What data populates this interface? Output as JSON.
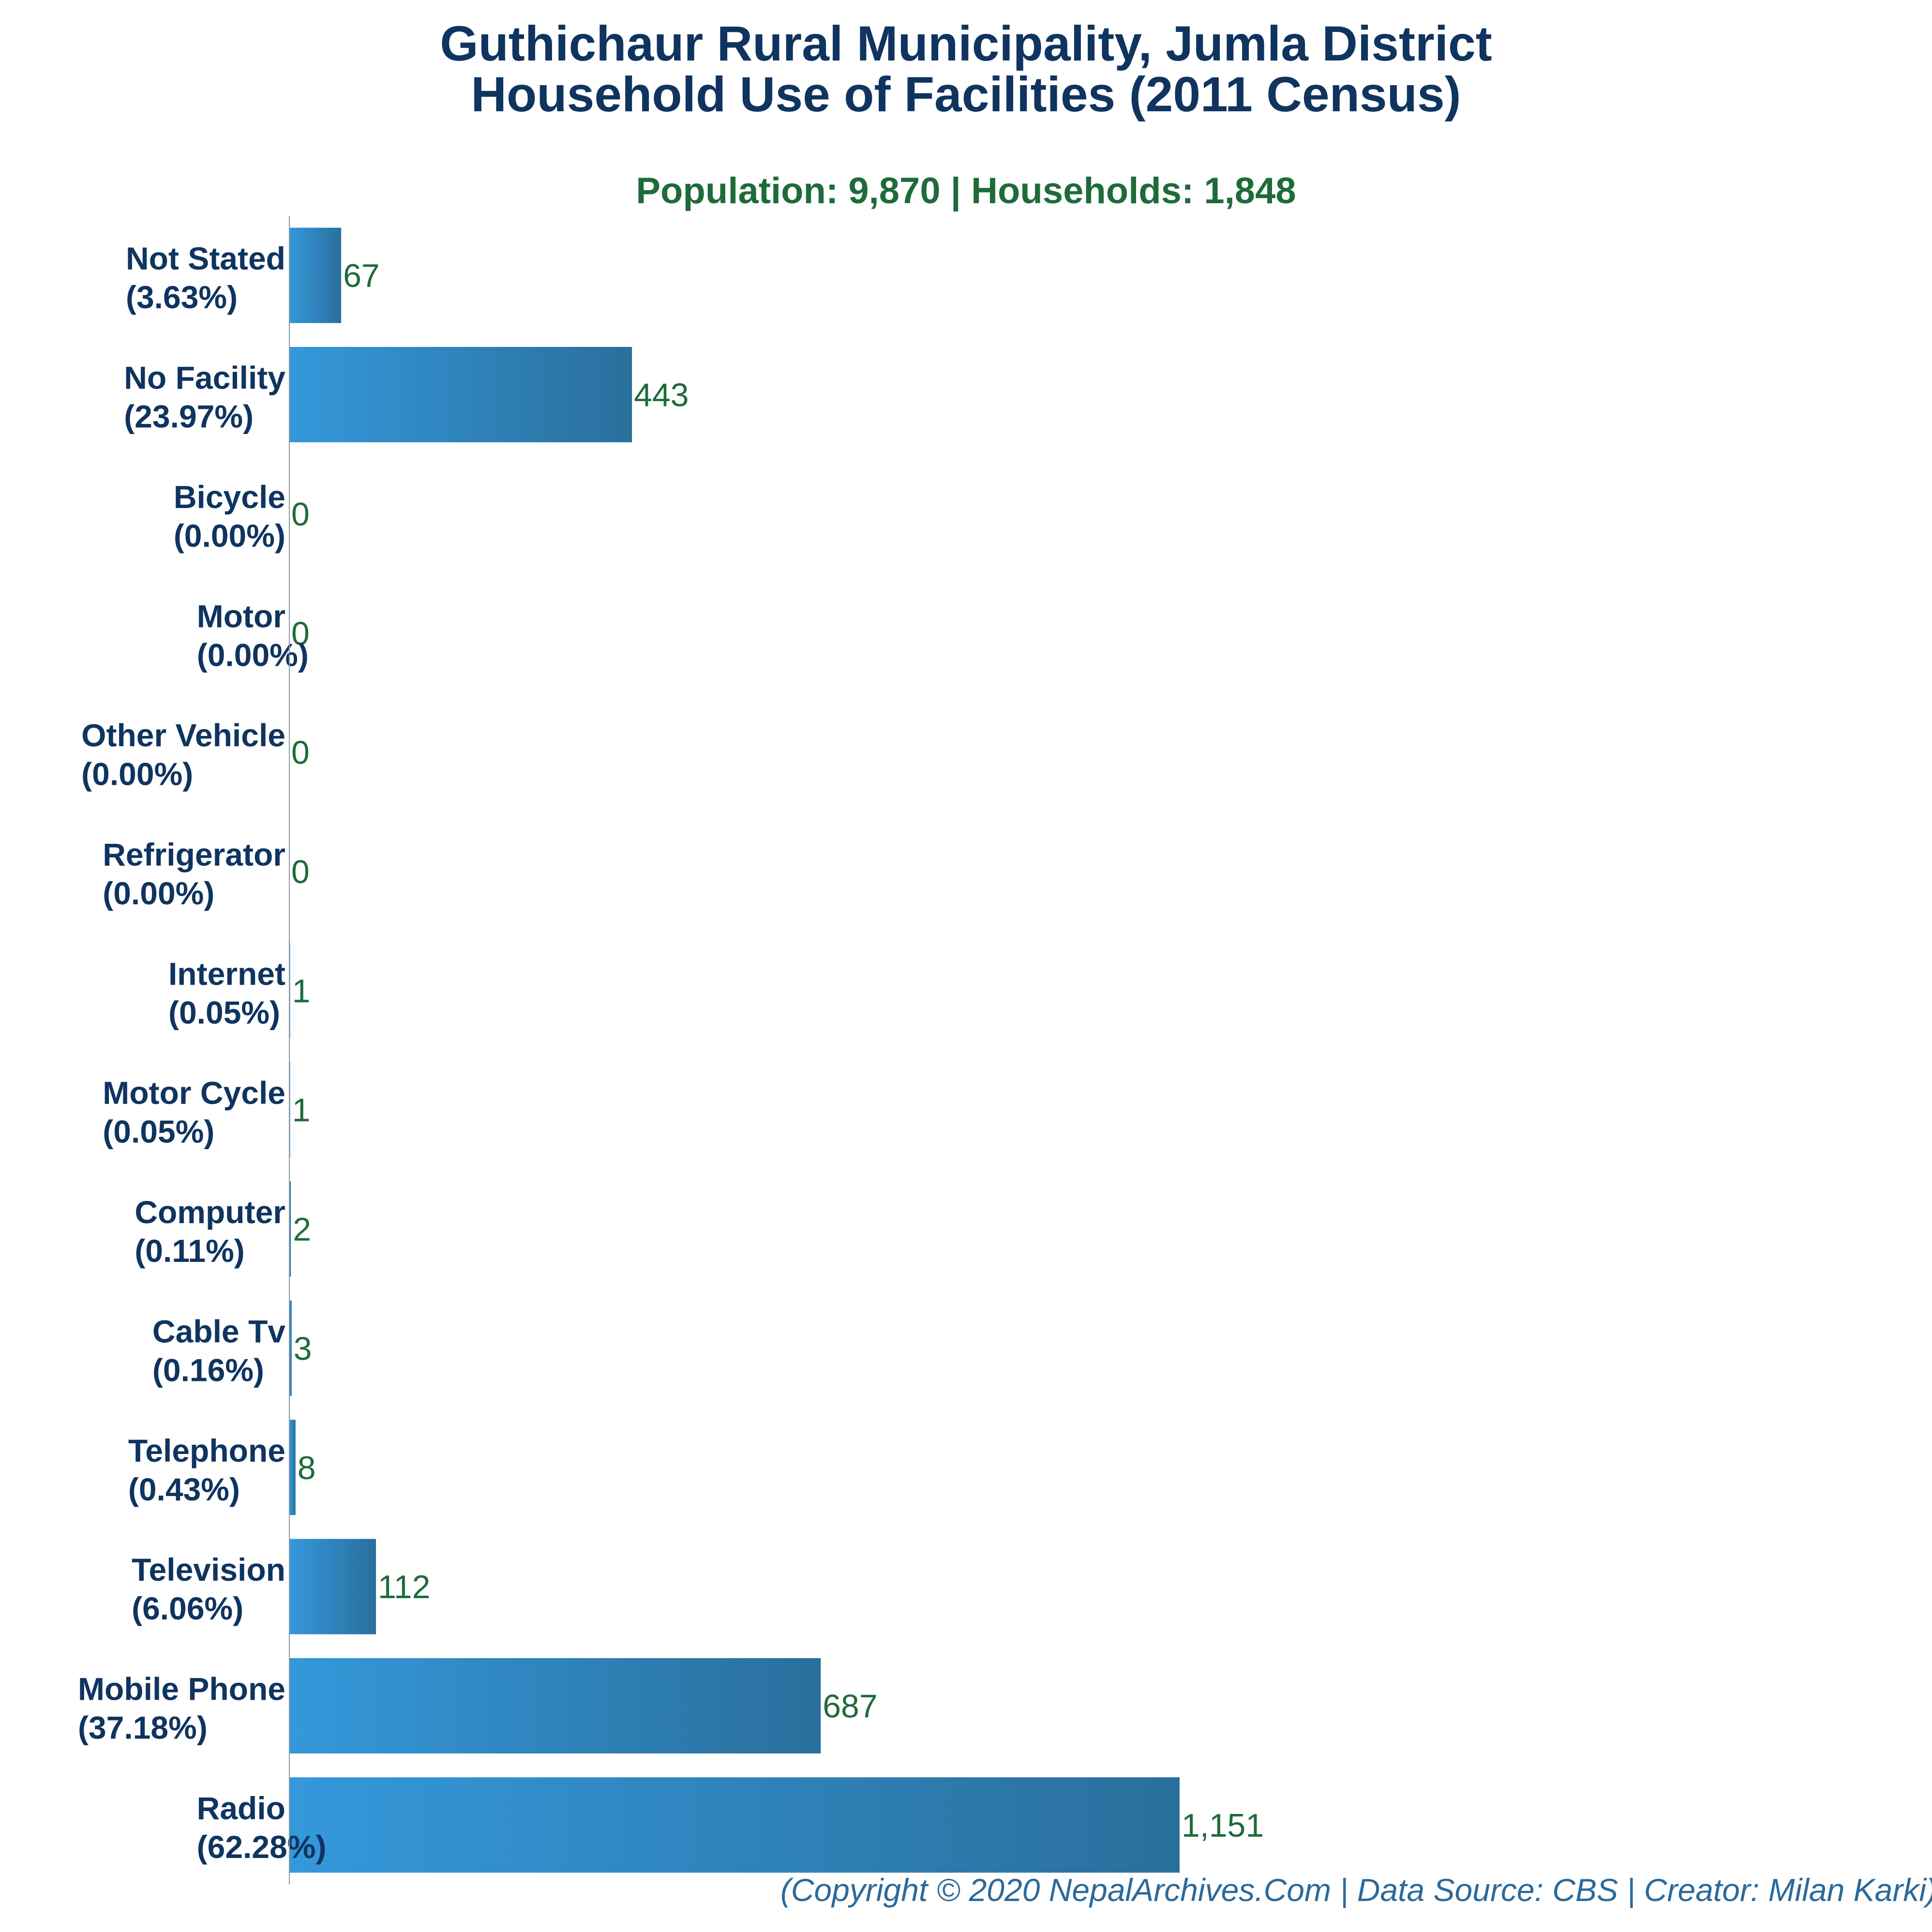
{
  "header": {
    "title_line1": "Guthichaur Rural Municipality, Jumla District",
    "title_line2": "Household Use of Facilities (2011 Census)",
    "subtitle": "Population: 9,870 | Households: 1,848"
  },
  "footer": {
    "copyright": "(Copyright © 2020 NepalArchives.Com | Data Source: CBS | Creator: Milan Karki)"
  },
  "colors": {
    "bar_start": "#3498db",
    "bar_end": "#2a6f9c",
    "title": "#0f3460",
    "value_label": "#1e6b3a",
    "copyright": "#2b6a9b"
  },
  "chart_data": {
    "type": "bar",
    "orientation": "horizontal",
    "categories": [
      "Not Stated",
      "No Facility",
      "Bicycle",
      "Motor",
      "Other Vehicle",
      "Refrigerator",
      "Internet",
      "Motor Cycle",
      "Computer",
      "Cable Tv",
      "Telephone",
      "Television",
      "Mobile Phone",
      "Radio"
    ],
    "percent_labels": [
      "(3.63%)",
      "(23.97%)",
      "(0.00%)",
      "(0.00%)",
      "(0.00%)",
      "(0.00%)",
      "(0.05%)",
      "(0.05%)",
      "(0.11%)",
      "(0.16%)",
      "(0.43%)",
      "(6.06%)",
      "(37.18%)",
      "(62.28%)"
    ],
    "values": [
      67,
      443,
      0,
      0,
      0,
      0,
      1,
      1,
      2,
      3,
      8,
      112,
      687,
      1151
    ],
    "value_labels": [
      "67",
      "443",
      "0",
      "0",
      "0",
      "0",
      "1",
      "1",
      "2",
      "3",
      "8",
      "112",
      "687",
      "1,151"
    ],
    "xlim": [
      0,
      1400
    ],
    "grid": false,
    "legend": "none"
  }
}
